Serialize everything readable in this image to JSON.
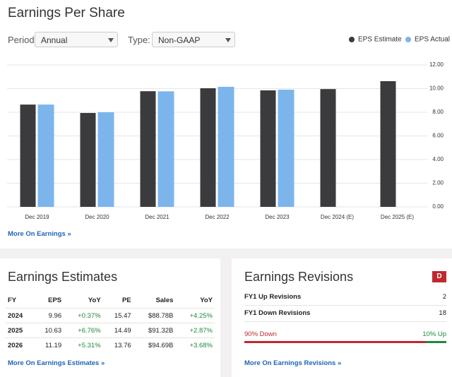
{
  "chart_data": {
    "type": "bar",
    "title": "Earnings Per Share",
    "categories": [
      "Dec 2019",
      "Dec 2020",
      "Dec 2021",
      "Dec 2022",
      "Dec 2023",
      "Dec 2024 (E)",
      "Dec 2025 (E)"
    ],
    "series": [
      {
        "name": "EPS Estimate",
        "color": "#3b3b3e",
        "values": [
          8.65,
          7.94,
          9.78,
          10.03,
          9.85,
          9.96,
          10.63
        ]
      },
      {
        "name": "EPS Actual",
        "color": "#7cb5ec",
        "values": [
          8.65,
          8.0,
          9.77,
          10.15,
          9.91,
          null,
          null
        ]
      }
    ],
    "ylim": [
      0,
      12
    ],
    "yticks": [
      {
        "value": 0,
        "label": "0.00"
      },
      {
        "value": 2,
        "label": "2.00"
      },
      {
        "value": 4,
        "label": "4.00"
      },
      {
        "value": 6,
        "label": "6.00"
      },
      {
        "value": 8,
        "label": "8.00"
      },
      {
        "value": 10,
        "label": "10.00"
      },
      {
        "value": 12,
        "label": "12.00"
      }
    ],
    "grid": true,
    "legend": "top-right"
  },
  "controls": {
    "period_label": "Period:",
    "period_value": "Annual",
    "type_label": "Type:",
    "type_value": "Non-GAAP"
  },
  "earnings_link": "More On Earnings »",
  "estimates": {
    "title": "Earnings Estimates",
    "columns": [
      "FY",
      "EPS",
      "YoY",
      "PE",
      "Sales",
      "YoY"
    ],
    "rows": [
      [
        "2024",
        "9.96",
        "+0.37%",
        "15.47",
        "$88.78B",
        "+4.25%"
      ],
      [
        "2025",
        "10.63",
        "+6.76%",
        "14.49",
        "$91.32B",
        "+2.87%"
      ],
      [
        "2026",
        "11.19",
        "+5.31%",
        "13.76",
        "$94.69B",
        "+3.68%"
      ]
    ],
    "link": "More On Earnings Estimates »"
  },
  "revisions": {
    "title": "Earnings Revisions",
    "grade": "D",
    "rows": [
      [
        "FY1 Up Revisions",
        2
      ],
      [
        "FY1 Down Revisions",
        18
      ]
    ],
    "down": 90,
    "down_label": "90% Down",
    "up": 10,
    "up_label": "10% Up",
    "link": "More On Earnings Revisions »"
  }
}
